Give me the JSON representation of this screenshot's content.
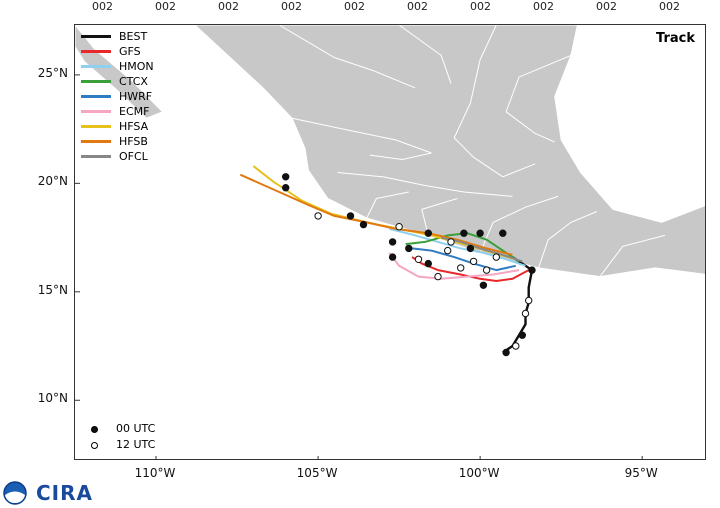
{
  "top_ticks": [
    "002",
    "002",
    "002",
    "002",
    "002",
    "002",
    "002",
    "002",
    "002",
    "002"
  ],
  "map": {
    "title": "Track",
    "lon_range": [
      -112.5,
      -93.0
    ],
    "lat_range": [
      7.2,
      27.3
    ],
    "lat_labels": [
      "25°N",
      "20°N",
      "15°N",
      "10°N"
    ],
    "lat_values": [
      25,
      20,
      15,
      10
    ],
    "lon_labels": [
      "110°W",
      "105°W",
      "100°W",
      "95°W"
    ],
    "lon_values": [
      -110,
      -105,
      -100,
      -95
    ],
    "land_color": "#c8c8c8",
    "border_color": "#ffffff"
  },
  "legend": [
    {
      "name": "BEST",
      "color": "#111111"
    },
    {
      "name": "GFS",
      "color": "#e8282b"
    },
    {
      "name": "HMON",
      "color": "#8fd0ee"
    },
    {
      "name": "CTCX",
      "color": "#3a9e3a"
    },
    {
      "name": "HWRF",
      "color": "#2f7cc2"
    },
    {
      "name": "ECMF",
      "color": "#f4a6c2"
    },
    {
      "name": "HFSA",
      "color": "#e6c21a"
    },
    {
      "name": "HFSB",
      "color": "#e07a10"
    },
    {
      "name": "OFCL",
      "color": "#888888"
    }
  ],
  "utc_legend": [
    {
      "label": "00 UTC",
      "fill": "#111111"
    },
    {
      "label": "12 UTC",
      "fill": "#ffffff"
    }
  ],
  "logo": {
    "text": "CIRA",
    "icon": "noaa-logo-icon"
  },
  "tracks": [
    {
      "model": "BEST",
      "points": [
        [
          -99.3,
          12.2
        ],
        [
          -99.0,
          12.5
        ],
        [
          -98.8,
          13.0
        ],
        [
          -98.6,
          13.5
        ],
        [
          -98.6,
          14.0
        ],
        [
          -98.5,
          14.5
        ],
        [
          -98.5,
          15.2
        ],
        [
          -98.4,
          16.0
        ],
        [
          -98.7,
          16.3
        ],
        [
          -99.0,
          16.6
        ]
      ]
    },
    {
      "model": "GFS",
      "points": [
        [
          -98.5,
          16.0
        ],
        [
          -99.0,
          15.6
        ],
        [
          -99.5,
          15.5
        ],
        [
          -100.0,
          15.6
        ],
        [
          -100.6,
          15.8
        ],
        [
          -101.3,
          16.0
        ],
        [
          -101.8,
          16.3
        ],
        [
          -102.1,
          16.6
        ]
      ]
    },
    {
      "model": "HMON",
      "points": [
        [
          -98.6,
          16.2
        ],
        [
          -99.2,
          16.5
        ],
        [
          -99.9,
          16.8
        ],
        [
          -100.6,
          17.0
        ],
        [
          -101.3,
          17.3
        ],
        [
          -102.0,
          17.6
        ],
        [
          -102.8,
          17.9
        ]
      ]
    },
    {
      "model": "CTCX",
      "points": [
        [
          -98.8,
          16.4
        ],
        [
          -99.3,
          16.9
        ],
        [
          -99.8,
          17.4
        ],
        [
          -100.4,
          17.7
        ],
        [
          -101.0,
          17.6
        ],
        [
          -101.7,
          17.3
        ],
        [
          -102.3,
          17.2
        ]
      ]
    },
    {
      "model": "HWRF",
      "points": [
        [
          -98.9,
          16.2
        ],
        [
          -99.5,
          16.0
        ],
        [
          -100.2,
          16.3
        ],
        [
          -100.8,
          16.6
        ],
        [
          -101.5,
          16.9
        ],
        [
          -102.1,
          17.0
        ]
      ]
    },
    {
      "model": "ECMF",
      "points": [
        [
          -98.8,
          16.0
        ],
        [
          -99.6,
          15.8
        ],
        [
          -100.4,
          15.7
        ],
        [
          -101.2,
          15.6
        ],
        [
          -101.9,
          15.7
        ],
        [
          -102.5,
          16.2
        ],
        [
          -102.8,
          16.8
        ]
      ]
    },
    {
      "model": "HFSA",
      "points": [
        [
          -98.9,
          16.5
        ],
        [
          -99.6,
          16.8
        ],
        [
          -100.5,
          17.2
        ],
        [
          -101.5,
          17.6
        ],
        [
          -102.5,
          17.9
        ],
        [
          -103.5,
          18.2
        ],
        [
          -104.6,
          18.6
        ],
        [
          -105.5,
          19.2
        ],
        [
          -106.4,
          20.1
        ],
        [
          -107.0,
          20.8
        ]
      ]
    },
    {
      "model": "HFSB",
      "points": [
        [
          -99.0,
          16.7
        ],
        [
          -99.8,
          17.0
        ],
        [
          -100.7,
          17.4
        ],
        [
          -101.6,
          17.7
        ],
        [
          -102.6,
          17.9
        ],
        [
          -103.5,
          18.2
        ],
        [
          -104.5,
          18.5
        ],
        [
          -105.3,
          19.0
        ],
        [
          -106.2,
          19.6
        ],
        [
          -107.4,
          20.4
        ]
      ]
    },
    {
      "model": "OFCL",
      "points": [
        [
          -98.7,
          16.4
        ],
        [
          -99.3,
          16.7
        ],
        [
          -100.0,
          17.0
        ],
        [
          -100.6,
          17.3
        ],
        [
          -101.2,
          17.5
        ]
      ]
    }
  ],
  "markers": [
    {
      "lon": -99.2,
      "lat": 12.2,
      "utc": "00"
    },
    {
      "lon": -98.9,
      "lat": 12.5,
      "utc": "12"
    },
    {
      "lon": -98.7,
      "lat": 13.0,
      "utc": "00"
    },
    {
      "lon": -98.6,
      "lat": 14.0,
      "utc": "12"
    },
    {
      "lon": -98.5,
      "lat": 14.6,
      "utc": "12"
    },
    {
      "lon": -98.4,
      "lat": 16.0,
      "utc": "00"
    },
    {
      "lon": -99.9,
      "lat": 15.3,
      "utc": "00"
    },
    {
      "lon": -99.3,
      "lat": 17.7,
      "utc": "00"
    },
    {
      "lon": -100.0,
      "lat": 17.7,
      "utc": "00"
    },
    {
      "lon": -100.5,
      "lat": 17.7,
      "utc": "00"
    },
    {
      "lon": -101.6,
      "lat": 17.7,
      "utc": "00"
    },
    {
      "lon": -102.7,
      "lat": 17.3,
      "utc": "00"
    },
    {
      "lon": -102.7,
      "lat": 16.6,
      "utc": "00"
    },
    {
      "lon": -101.3,
      "lat": 15.7,
      "utc": "12"
    },
    {
      "lon": -100.6,
      "lat": 16.1,
      "utc": "12"
    },
    {
      "lon": -100.2,
      "lat": 16.4,
      "utc": "12"
    },
    {
      "lon": -101.0,
      "lat": 16.9,
      "utc": "12"
    },
    {
      "lon": -101.6,
      "lat": 16.3,
      "utc": "00"
    },
    {
      "lon": -99.5,
      "lat": 16.6,
      "utc": "12"
    },
    {
      "lon": -99.8,
      "lat": 16.0,
      "utc": "12"
    },
    {
      "lon": -102.2,
      "lat": 17.0,
      "utc": "00"
    },
    {
      "lon": -101.9,
      "lat": 16.5,
      "utc": "12"
    },
    {
      "lon": -100.9,
      "lat": 17.3,
      "utc": "12"
    },
    {
      "lon": -100.3,
      "lat": 17.0,
      "utc": "00"
    },
    {
      "lon": -102.5,
      "lat": 18.0,
      "utc": "12"
    },
    {
      "lon": -104.0,
      "lat": 18.5,
      "utc": "00"
    },
    {
      "lon": -103.6,
      "lat": 18.1,
      "utc": "00"
    },
    {
      "lon": -105.0,
      "lat": 18.5,
      "utc": "12"
    },
    {
      "lon": -106.0,
      "lat": 19.8,
      "utc": "00"
    },
    {
      "lon": -106.0,
      "lat": 20.3,
      "utc": "00"
    }
  ]
}
